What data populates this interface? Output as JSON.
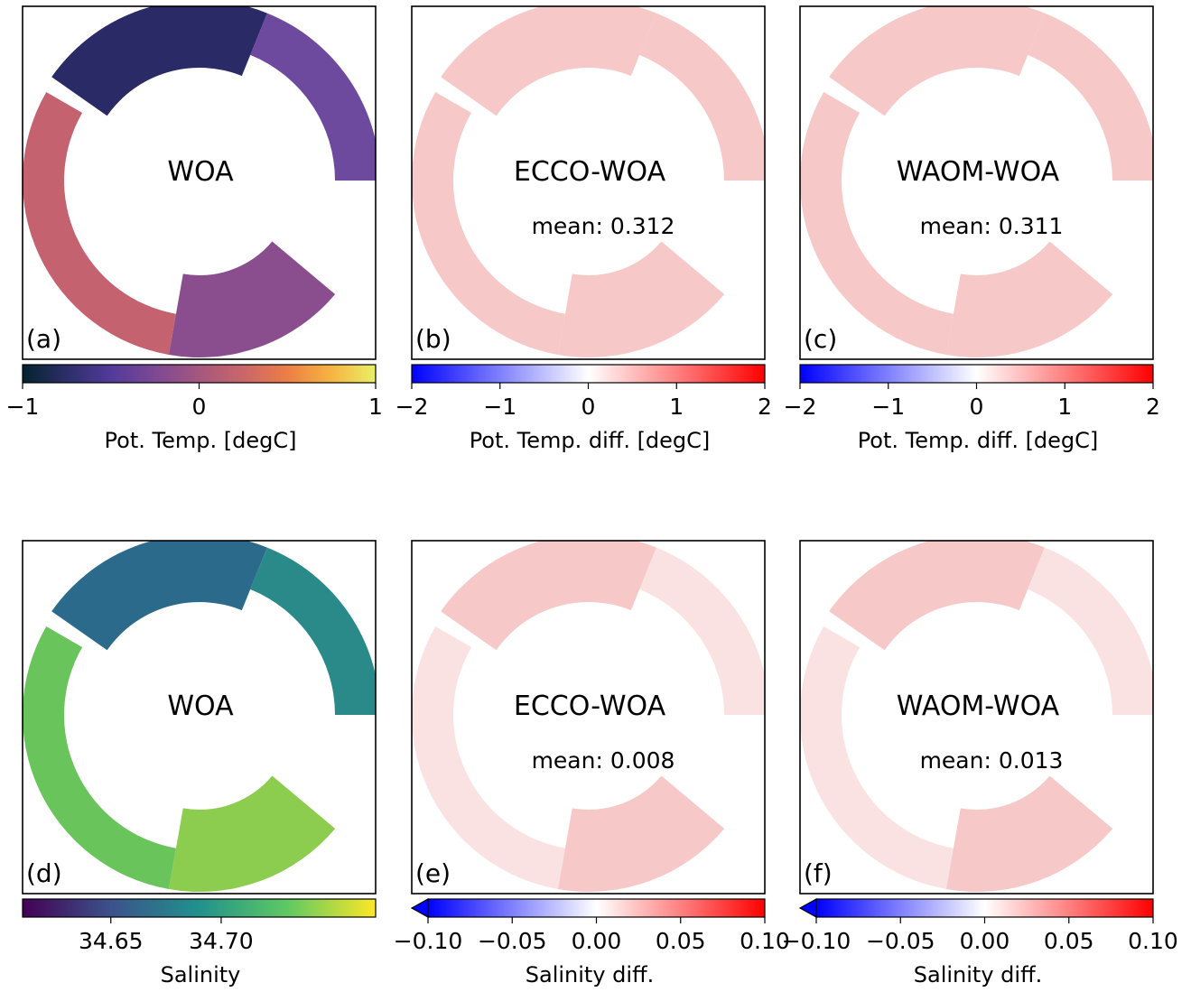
{
  "chart_data": [
    {
      "type": "heatmap",
      "panel": "(a)",
      "title": "WOA",
      "mean": "",
      "colorbar": {
        "label": "Pot. Temp. [degC]",
        "range": [
          -1,
          1
        ],
        "ticks": [
          "−1",
          "0",
          "1"
        ],
        "tick_values": [
          -1,
          0,
          1
        ],
        "colormap": "thermal",
        "extend_min": false
      }
    },
    {
      "type": "heatmap",
      "panel": "(b)",
      "title": "ECCO-WOA",
      "mean": "mean: 0.312",
      "colorbar": {
        "label": "Pot. Temp. diff. [degC]",
        "range": [
          -2,
          2
        ],
        "ticks": [
          "−2",
          "−1",
          "0",
          "1",
          "2"
        ],
        "tick_values": [
          -2,
          -1,
          0,
          1,
          2
        ],
        "colormap": "bwr",
        "extend_min": false
      }
    },
    {
      "type": "heatmap",
      "panel": "(c)",
      "title": "WAOM-WOA",
      "mean": "mean: 0.311",
      "colorbar": {
        "label": "Pot. Temp. diff. [degC]",
        "range": [
          -2,
          2
        ],
        "ticks": [
          "−2",
          "−1",
          "0",
          "1",
          "2"
        ],
        "tick_values": [
          -2,
          -1,
          0,
          1,
          2
        ],
        "colormap": "bwr",
        "extend_min": false
      }
    },
    {
      "type": "heatmap",
      "panel": "(d)",
      "title": "WOA",
      "mean": "",
      "colorbar": {
        "label": "Salinity",
        "range": [
          34.61,
          34.77
        ],
        "ticks": [
          "34.65",
          "34.70"
        ],
        "tick_values": [
          34.65,
          34.7
        ],
        "colormap": "viridis",
        "extend_min": false
      }
    },
    {
      "type": "heatmap",
      "panel": "(e)",
      "title": "ECCO-WOA",
      "mean": "mean: 0.008",
      "colorbar": {
        "label": "Salinity diff.",
        "range": [
          -0.1,
          0.1
        ],
        "ticks": [
          "−0.10",
          "−0.05",
          "0.00",
          "0.05",
          "0.10"
        ],
        "tick_values": [
          -0.1,
          -0.05,
          0,
          0.05,
          0.1
        ],
        "colormap": "bwr",
        "extend_min": true
      }
    },
    {
      "type": "heatmap",
      "panel": "(f)",
      "title": "WAOM-WOA",
      "mean": "mean: 0.013",
      "colorbar": {
        "label": "Salinity diff.",
        "range": [
          -0.1,
          0.1
        ],
        "ticks": [
          "−0.10",
          "−0.05",
          "0.00",
          "0.05",
          "0.10"
        ],
        "tick_values": [
          -0.1,
          -0.05,
          0,
          0.05,
          0.1
        ],
        "colormap": "bwr",
        "extend_min": true
      }
    }
  ],
  "colormaps": {
    "thermal": [
      "#04232c",
      "#2c2e6a",
      "#523a9a",
      "#7d4894",
      "#a5577e",
      "#ca6669",
      "#ec7e45",
      "#f7b441",
      "#e8f067"
    ],
    "bwr": [
      "#0000ff",
      "#8080ff",
      "#ffffff",
      "#ff8080",
      "#ff0000"
    ],
    "viridis": [
      "#440154",
      "#3b528b",
      "#21918c",
      "#5ec962",
      "#fde725"
    ]
  },
  "field_colors": {
    "thermal_north": "#2a2a66",
    "thermal_east": "#6e4a9e",
    "thermal_west": "#c46270",
    "thermal_south": "#8a4e8e",
    "diff_pink": "#f7c8c8",
    "diff_pink_light": "#fbe2e2",
    "salt_north": "#2c6a8c",
    "salt_east": "#2a8a8a",
    "salt_west": "#6ac45c",
    "salt_south": "#8ccc4e"
  }
}
